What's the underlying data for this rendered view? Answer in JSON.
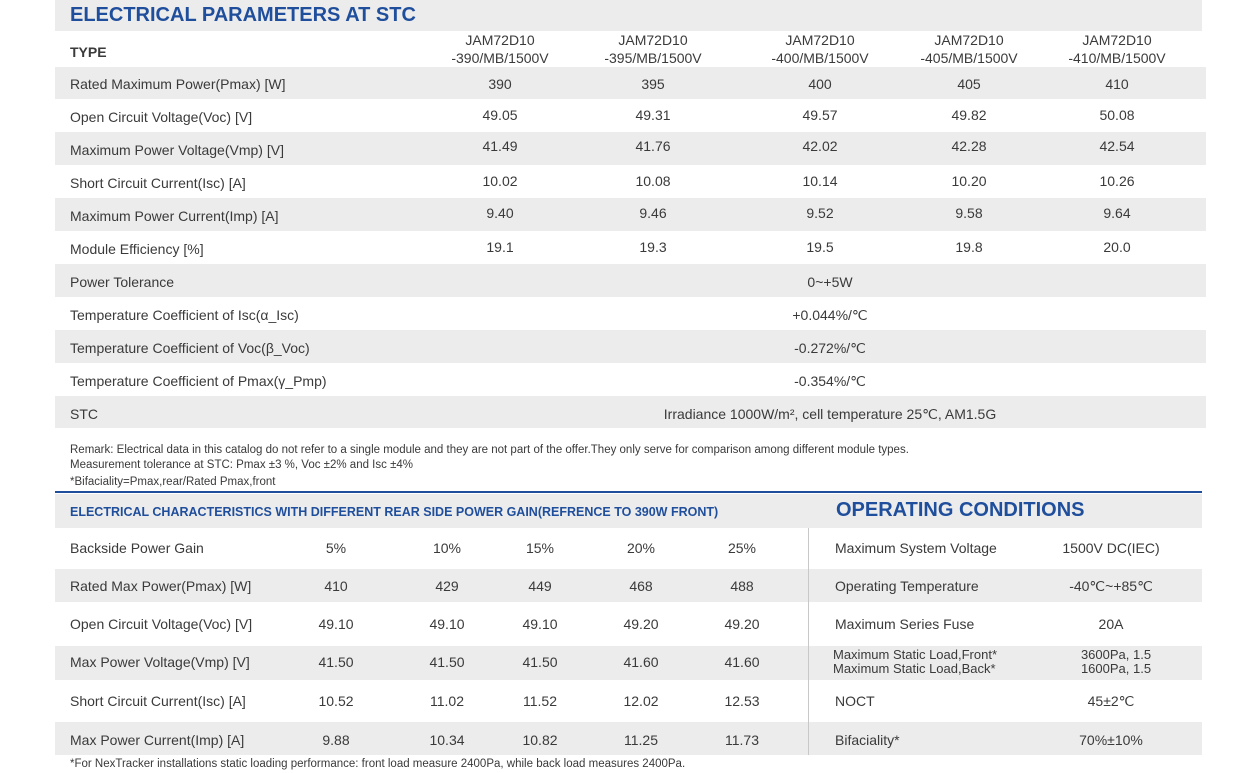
{
  "stc": {
    "title": "ELECTRICAL PARAMETERS AT STC",
    "type_label": "TYPE",
    "models": [
      {
        "l1": "JAM72D10",
        "l2": "-390/MB/1500V"
      },
      {
        "l1": "JAM72D10",
        "l2": "-395/MB/1500V"
      },
      {
        "l1": "JAM72D10",
        "l2": "-400/MB/1500V"
      },
      {
        "l1": "JAM72D10",
        "l2": "-405/MB/1500V"
      },
      {
        "l1": "JAM72D10",
        "l2": "-410/MB/1500V"
      }
    ],
    "rows": [
      {
        "label": "Rated Maximum Power(Pmax) [W]",
        "values": [
          "390",
          "395",
          "400",
          "405",
          "410"
        ]
      },
      {
        "label": "Open Circuit Voltage(Voc) [V]",
        "values": [
          "49.05",
          "49.31",
          "49.57",
          "49.82",
          "50.08"
        ]
      },
      {
        "label": "Maximum Power Voltage(Vmp) [V]",
        "values": [
          "41.49",
          "41.76",
          "42.02",
          "42.28",
          "42.54"
        ]
      },
      {
        "label": "Short Circuit Current(Isc) [A]",
        "values": [
          "10.02",
          "10.08",
          "10.14",
          "10.20",
          "10.26"
        ]
      },
      {
        "label": "Maximum Power Current(Imp) [A]",
        "values": [
          "9.40",
          "9.46",
          "9.52",
          "9.58",
          "9.64"
        ]
      },
      {
        "label": "Module Efficiency [%]",
        "values": [
          "19.1",
          "19.3",
          "19.5",
          "19.8",
          "20.0"
        ]
      }
    ],
    "span_rows": [
      {
        "label": "Power Tolerance",
        "value": "0~+5W"
      },
      {
        "label": "Temperature Coefficient of Isc(α_Isc)",
        "value": "+0.044%/℃"
      },
      {
        "label": "Temperature Coefficient of Voc(β_Voc)",
        "value": "-0.272%/℃"
      },
      {
        "label": "Temperature Coefficient of Pmax(γ_Pmp)",
        "value": "-0.354%/℃"
      },
      {
        "label": "STC",
        "value": "Irradiance 1000W/m², cell temperature 25℃, AM1.5G"
      }
    ],
    "remarks": [
      "Remark: Electrical data in this catalog do not refer to a single module and they are not part of the offer.They only serve for comparison among different module types.",
      "Measurement tolerance at STC: Pmax ±3 %, Voc ±2% and Isc ±4%",
      "*Bifaciality=Pmax,rear/Rated Pmax,front"
    ]
  },
  "rear": {
    "title": "ELECTRICAL CHARACTERISTICS WITH DIFFERENT REAR SIDE POWER GAIN(REFRENCE TO 390W FRONT)",
    "rows": [
      {
        "label": "Backside Power Gain",
        "values": [
          "5%",
          "10%",
          "15%",
          "20%",
          "25%"
        ]
      },
      {
        "label": "Rated Max Power(Pmax) [W]",
        "values": [
          "410",
          "429",
          "449",
          "468",
          "488"
        ]
      },
      {
        "label": "Open Circuit Voltage(Voc) [V]",
        "values": [
          "49.10",
          "49.10",
          "49.10",
          "49.20",
          "49.20"
        ]
      },
      {
        "label": "Max Power Voltage(Vmp) [V]",
        "values": [
          "41.50",
          "41.50",
          "41.50",
          "41.60",
          "41.60"
        ]
      },
      {
        "label": "Short Circuit Current(Isc) [A]",
        "values": [
          "10.52",
          "11.02",
          "11.52",
          "12.02",
          "12.53"
        ]
      },
      {
        "label": "Max Power Current(Imp) [A]",
        "values": [
          "9.88",
          "10.34",
          "10.82",
          "11.25",
          "11.73"
        ]
      }
    ]
  },
  "operating": {
    "title": "OPERATING CONDITIONS",
    "rows": [
      {
        "label": "Maximum System Voltage",
        "value": "1500V DC(IEC)"
      },
      {
        "label": "Operating Temperature",
        "value": "-40℃~+85℃"
      },
      {
        "label": "Maximum Series Fuse",
        "value": "20A"
      },
      {
        "label": "Maximum Static Load,Front*",
        "label2": "Maximum Static Load,Back*",
        "value": "3600Pa, 1.5",
        "value2": "1600Pa, 1.5"
      },
      {
        "label": "NOCT",
        "value": "45±2℃"
      },
      {
        "label": "Bifaciality*",
        "value": "70%±10%"
      }
    ]
  },
  "footnote": "*For NexTracker installations static loading performance: front load measure 2400Pa, while back load measures 2400Pa."
}
